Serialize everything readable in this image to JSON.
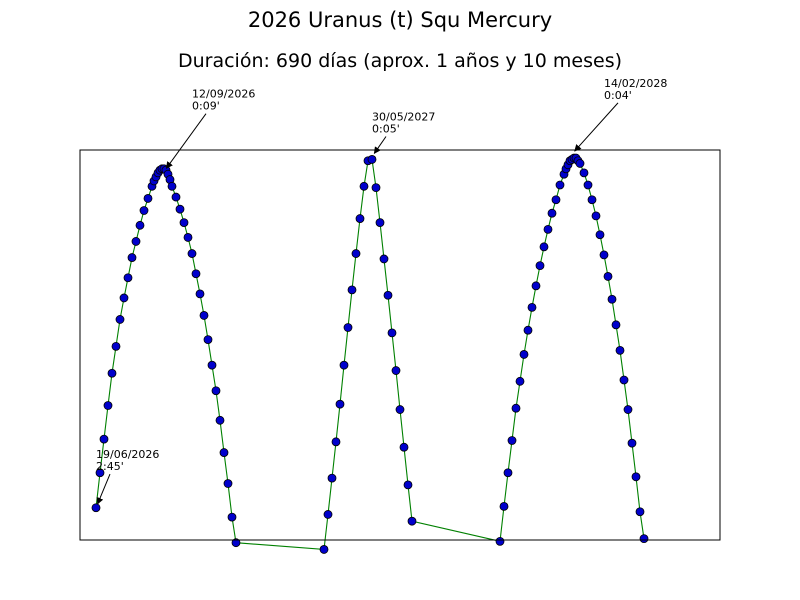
{
  "chart_data": {
    "type": "line",
    "title": "2026 Uranus (t) Squ Mercury",
    "subtitle": "Duración: 690 días (aprox. 1 años y 10 meses)",
    "xlabel": "",
    "ylabel": "",
    "grid": false,
    "axes_ticks": false,
    "line_color": "#008000",
    "marker_color": "#0000cc",
    "marker_edge": "#000000",
    "xlim": [
      -4,
      156
    ],
    "ylim": [
      0.0,
      2.9
    ],
    "series": [
      {
        "x": [
          0,
          1,
          2,
          3,
          4,
          5,
          6,
          7,
          8,
          9,
          10,
          11,
          12,
          13,
          14,
          14.5,
          15,
          15.5,
          16,
          16.5,
          17,
          17.5,
          18,
          18.5,
          19,
          20,
          21,
          22,
          23,
          24,
          25,
          26,
          27,
          28,
          29,
          30,
          31,
          32,
          33,
          34,
          35,
          57,
          58,
          59,
          60,
          61,
          62,
          63,
          64,
          65,
          66,
          67,
          68,
          69,
          70,
          71,
          72,
          73,
          74,
          75,
          76,
          77,
          78,
          79,
          101,
          102,
          103,
          104,
          105,
          106,
          107,
          108,
          109,
          110,
          111,
          112,
          113,
          114,
          115,
          116,
          117,
          117.5,
          118,
          118.5,
          119,
          119.5,
          120,
          120.5,
          121,
          122,
          123,
          124,
          125,
          126,
          127,
          128,
          129,
          130,
          131,
          132,
          133,
          134,
          135,
          136,
          137
        ],
        "y": [
          0.24,
          0.5,
          0.75,
          1.0,
          1.24,
          1.44,
          1.64,
          1.8,
          1.95,
          2.1,
          2.22,
          2.34,
          2.45,
          2.54,
          2.63,
          2.67,
          2.7,
          2.73,
          2.75,
          2.76,
          2.76,
          2.75,
          2.72,
          2.68,
          2.63,
          2.55,
          2.46,
          2.36,
          2.25,
          2.13,
          1.98,
          1.83,
          1.67,
          1.49,
          1.3,
          1.11,
          0.89,
          0.65,
          0.42,
          0.17,
          -0.02,
          -0.07,
          0.19,
          0.46,
          0.73,
          1.01,
          1.3,
          1.58,
          1.86,
          2.13,
          2.39,
          2.63,
          2.82,
          2.83,
          2.62,
          2.36,
          2.09,
          1.82,
          1.54,
          1.26,
          0.97,
          0.69,
          0.41,
          0.14,
          -0.01,
          0.25,
          0.5,
          0.74,
          0.98,
          1.18,
          1.38,
          1.56,
          1.73,
          1.89,
          2.04,
          2.18,
          2.31,
          2.43,
          2.53,
          2.64,
          2.72,
          2.76,
          2.79,
          2.82,
          2.83,
          2.84,
          2.84,
          2.82,
          2.8,
          2.73,
          2.64,
          2.53,
          2.41,
          2.27,
          2.12,
          1.96,
          1.79,
          1.6,
          1.41,
          1.19,
          0.97,
          0.72,
          0.47,
          0.21,
          0.01
        ]
      }
    ],
    "annotations": [
      {
        "date": "19/06/2026",
        "orb": "2:45'",
        "x": 0,
        "y": 0.24,
        "tx": 0,
        "ty": 0.52
      },
      {
        "date": "12/09/2026",
        "orb": "0:09'",
        "x": 17,
        "y": 2.74,
        "tx": 24,
        "ty": 3.2
      },
      {
        "date": "30/05/2027",
        "orb": "0:05'",
        "x": 69,
        "y": 2.85,
        "tx": 69,
        "ty": 3.03
      },
      {
        "date": "14/02/2028",
        "orb": "0:04'",
        "x": 119,
        "y": 2.87,
        "tx": 127,
        "ty": 3.28
      }
    ]
  }
}
